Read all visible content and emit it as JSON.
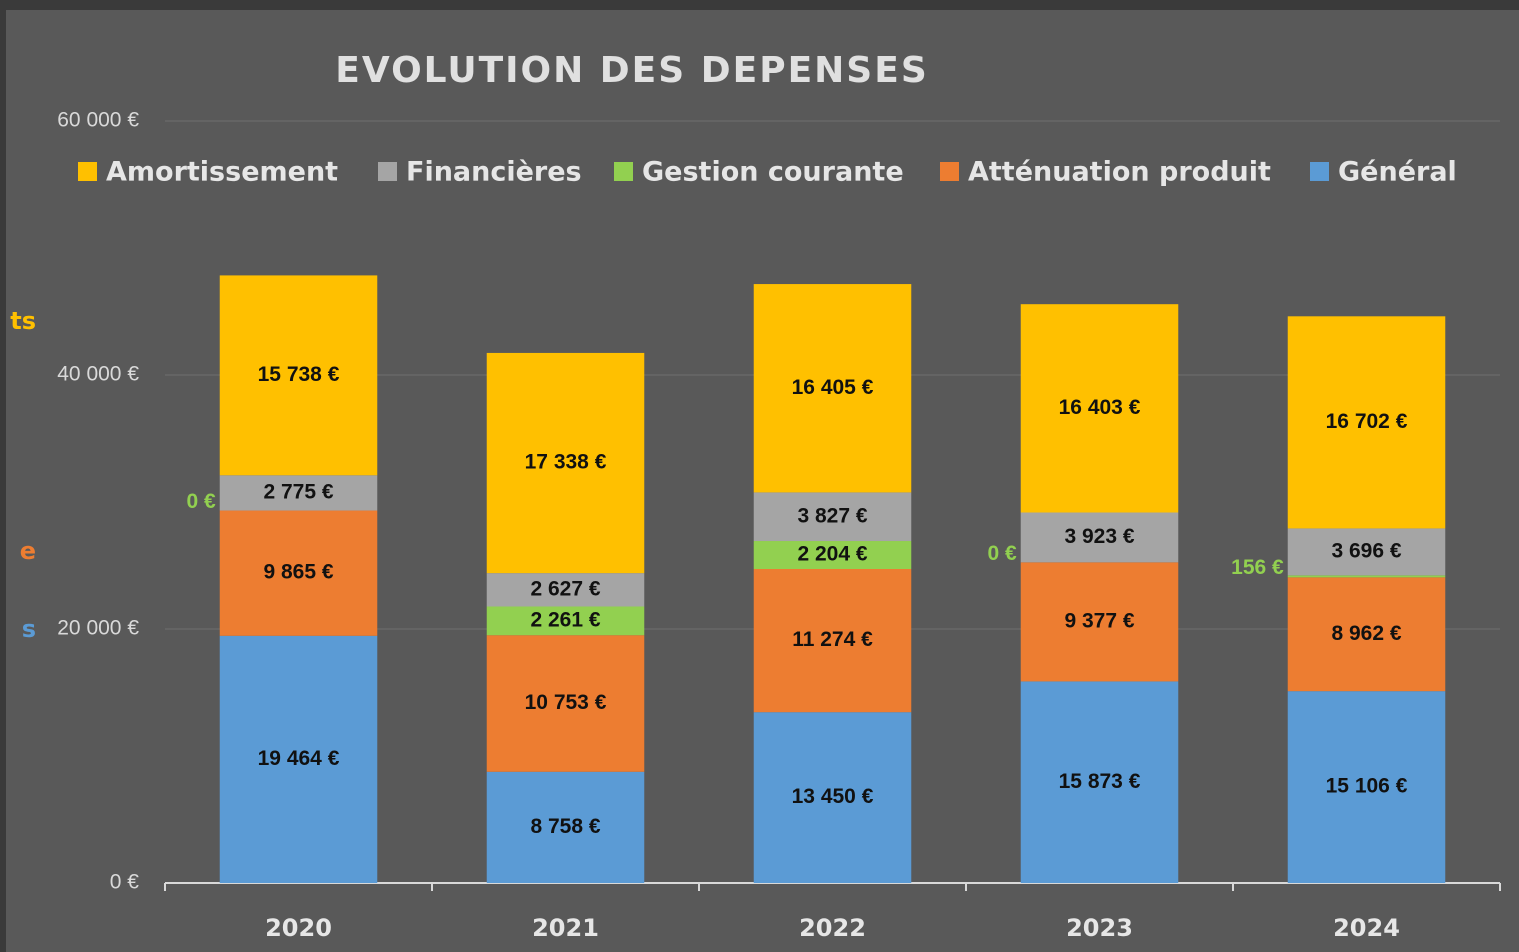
{
  "chart_data": {
    "type": "stacked_bar",
    "title": "EVOLUTION DES DEPENSES",
    "categories": [
      "2020",
      "2021",
      "2022",
      "2023",
      "2024"
    ],
    "series": [
      {
        "name": "Général",
        "color": "#5b9bd5",
        "values": [
          19464,
          8758,
          13450,
          15873,
          15106
        ],
        "value_labels": [
          "19 464 €",
          "8 758 €",
          "13 450 €",
          "15 873 €",
          "15 106 €"
        ]
      },
      {
        "name": "Atténuation produit",
        "color": "#ed7d31",
        "values": [
          9865,
          10753,
          11274,
          9377,
          8962
        ],
        "value_labels": [
          "9 865 €",
          "10 753 €",
          "11 274 €",
          "9 377 €",
          "8 962 €"
        ]
      },
      {
        "name": "Gestion courante",
        "color": "#92d050",
        "values": [
          0,
          2261,
          2204,
          0,
          156
        ],
        "value_labels": [
          "0 €",
          "2 261 €",
          "2 204 €",
          "0 €",
          "156 €"
        ]
      },
      {
        "name": "Financières",
        "color": "#a5a5a5",
        "values": [
          2775,
          2627,
          3827,
          3923,
          3696
        ],
        "value_labels": [
          "2 775 €",
          "2 627 €",
          "3 827 €",
          "3 923 €",
          "3 696 €"
        ]
      },
      {
        "name": "Amortissement",
        "color": "#ffc000",
        "values": [
          15738,
          17338,
          16405,
          16403,
          16702
        ],
        "value_labels": [
          "15 738 €",
          "17 338 €",
          "16 405 €",
          "16 403 €",
          "16 702 €"
        ]
      }
    ],
    "ylim": [
      0,
      60000
    ],
    "yticks": [
      {
        "value": 0,
        "label": "0 €"
      },
      {
        "value": 20000,
        "label": "20 000 €"
      },
      {
        "value": 40000,
        "label": "40 000 €"
      },
      {
        "value": 60000,
        "label": "60 000 €"
      }
    ],
    "grid": true,
    "legend": "top"
  },
  "edge_fragments": [
    {
      "text": "ts",
      "color": "#ffc000"
    },
    {
      "text": "e",
      "color": "#ed7d31"
    },
    {
      "text": "s",
      "color": "#5b9bd5"
    }
  ]
}
